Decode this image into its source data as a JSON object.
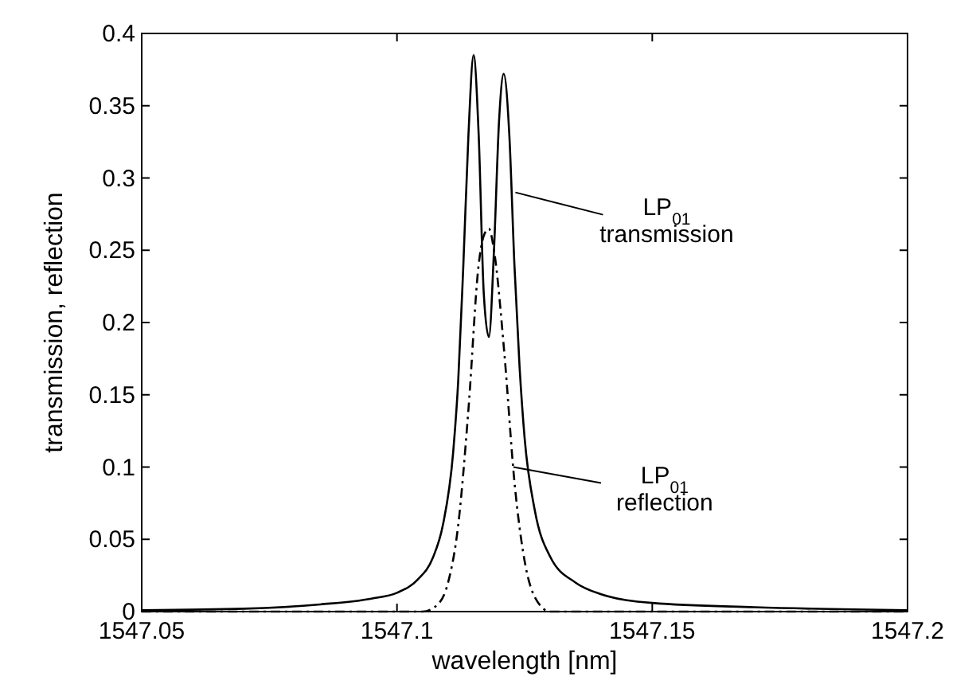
{
  "chart_data": {
    "type": "line",
    "xlabel": "wavelength [nm]",
    "ylabel": "transmission, reflection",
    "xlim": [
      1547.05,
      1547.2
    ],
    "xticks": [
      1547.05,
      1547.1,
      1547.15,
      1547.2
    ],
    "ylim": [
      0,
      0.4
    ],
    "yticks": [
      0,
      0.05,
      0.1,
      0.15,
      0.2,
      0.25,
      0.3,
      0.35,
      0.4
    ],
    "grid": false,
    "marker": "none",
    "series": [
      {
        "color": "#000000",
        "line_style": "solid",
        "x": [
          1547.05,
          1547.07,
          1547.085,
          1547.095,
          1547.1,
          1547.104,
          1547.107,
          1547.109,
          1547.111,
          1547.112,
          1547.113,
          1547.114,
          1547.115,
          1547.116,
          1547.117,
          1547.118,
          1547.119,
          1547.12,
          1547.1209,
          1547.122,
          1547.123,
          1547.124,
          1547.125,
          1547.127,
          1547.13,
          1547.135,
          1547.14,
          1547.15,
          1547.17,
          1547.2
        ],
        "values": [
          0.001,
          0.002,
          0.005,
          0.009,
          0.013,
          0.022,
          0.037,
          0.06,
          0.11,
          0.16,
          0.24,
          0.33,
          0.385,
          0.33,
          0.22,
          0.19,
          0.25,
          0.34,
          0.372,
          0.33,
          0.24,
          0.17,
          0.12,
          0.07,
          0.038,
          0.02,
          0.012,
          0.006,
          0.003,
          0.001
        ]
      },
      {
        "color": "#000000",
        "line_style": "dashdot",
        "x": [
          1547.05,
          1547.105,
          1547.108,
          1547.11,
          1547.112,
          1547.114,
          1547.116,
          1547.117,
          1547.118,
          1547.119,
          1547.121,
          1547.123,
          1547.125,
          1547.127,
          1547.13,
          1547.2
        ],
        "values": [
          0,
          0,
          0.005,
          0.02,
          0.06,
          0.14,
          0.24,
          0.26,
          0.265,
          0.25,
          0.18,
          0.09,
          0.035,
          0.01,
          0,
          0
        ]
      }
    ],
    "annotations": [
      {
        "text": "LP$_{01}$\ntransmission",
        "x": 1547.1232,
        "y": 0.29
      },
      {
        "text": "LP$_{01}$\nreflection",
        "x": 1547.1228,
        "y": 0.1
      }
    ]
  }
}
